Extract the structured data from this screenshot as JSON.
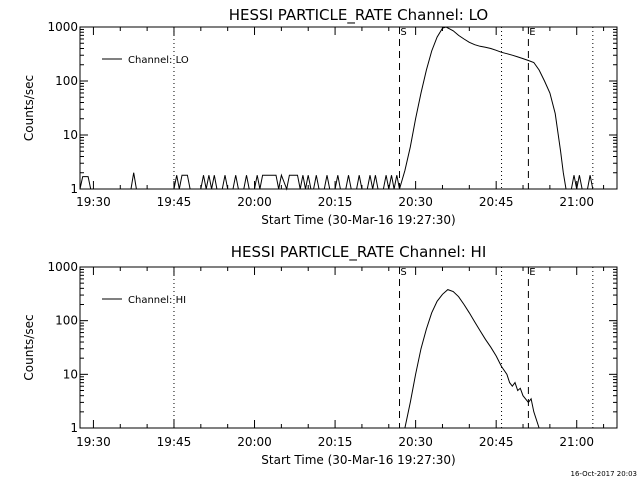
{
  "footer": {
    "timestamp": "16-Oct-2017 20:03"
  },
  "chart_data": [
    {
      "type": "line",
      "title": "HESSI PARTICLE_RATE Channel: LO",
      "xlabel": "Start Time (30-Mar-16 19:27:30)",
      "ylabel": "Counts/sec",
      "y_scale": "log",
      "ylim": [
        1,
        1000
      ],
      "xlim": [
        "19:27:30",
        "21:07:30"
      ],
      "x_ticks": [
        "19:30",
        "19:45",
        "20:00",
        "20:15",
        "20:30",
        "20:45",
        "21:00"
      ],
      "y_ticks": [
        "1",
        "10",
        "100",
        "1000"
      ],
      "markers": [
        {
          "label": "S",
          "time": "20:27:00",
          "style": "dashed"
        },
        {
          "label": "E",
          "time": "20:51:00",
          "style": "dashed"
        },
        {
          "label": "",
          "time": "19:45:00",
          "style": "dotted"
        },
        {
          "label": "",
          "time": "20:46:00",
          "style": "dotted"
        },
        {
          "label": "",
          "time": "21:03:00",
          "style": "dotted"
        }
      ],
      "legend": "top-left",
      "series": [
        {
          "name": "Channel: LO",
          "points": [
            [
              "19:27:30",
              1
            ],
            [
              "19:28:00",
              1.7
            ],
            [
              "19:29:00",
              1.7
            ],
            [
              "19:29:30",
              1
            ],
            [
              "19:37:00",
              1
            ],
            [
              "19:37:30",
              2
            ],
            [
              "19:38:00",
              1
            ],
            [
              "19:45:00",
              1
            ],
            [
              "19:45:30",
              1.8
            ],
            [
              "19:46:00",
              1
            ],
            [
              "19:46:30",
              1.8
            ],
            [
              "19:47:30",
              1.8
            ],
            [
              "19:48:00",
              1
            ],
            [
              "19:50:00",
              1
            ],
            [
              "19:50:30",
              1.8
            ],
            [
              "19:51:00",
              1
            ],
            [
              "19:51:30",
              1.8
            ],
            [
              "19:52:00",
              1
            ],
            [
              "19:52:30",
              1.8
            ],
            [
              "19:53:00",
              1
            ],
            [
              "19:54:00",
              1
            ],
            [
              "19:54:30",
              1.8
            ],
            [
              "19:55:00",
              1
            ],
            [
              "19:56:00",
              1
            ],
            [
              "19:56:30",
              1.8
            ],
            [
              "19:57:00",
              1
            ],
            [
              "19:58:00",
              1
            ],
            [
              "19:58:30",
              1.8
            ],
            [
              "19:59:00",
              1
            ],
            [
              "20:00:00",
              1
            ],
            [
              "20:00:30",
              1.8
            ],
            [
              "20:01:00",
              1
            ],
            [
              "20:01:30",
              1.8
            ],
            [
              "20:04:00",
              1.8
            ],
            [
              "20:04:30",
              1
            ],
            [
              "20:05:00",
              1.8
            ],
            [
              "20:06:00",
              1
            ],
            [
              "20:06:30",
              1.8
            ],
            [
              "20:08:00",
              1.8
            ],
            [
              "20:08:30",
              1
            ],
            [
              "20:09:00",
              1.8
            ],
            [
              "20:09:30",
              1
            ],
            [
              "20:10:00",
              1.8
            ],
            [
              "20:10:30",
              1
            ],
            [
              "20:11:00",
              1
            ],
            [
              "20:11:30",
              1.8
            ],
            [
              "20:12:00",
              1
            ],
            [
              "20:13:00",
              1
            ],
            [
              "20:13:30",
              1.8
            ],
            [
              "20:14:00",
              1
            ],
            [
              "20:15:00",
              1
            ],
            [
              "20:15:30",
              1.8
            ],
            [
              "20:16:00",
              1
            ],
            [
              "20:17:00",
              1
            ],
            [
              "20:17:30",
              1.8
            ],
            [
              "20:18:00",
              1
            ],
            [
              "20:19:00",
              1
            ],
            [
              "20:19:30",
              1.8
            ],
            [
              "20:20:00",
              1
            ],
            [
              "20:21:00",
              1
            ],
            [
              "20:21:30",
              1.8
            ],
            [
              "20:22:00",
              1
            ],
            [
              "20:22:30",
              1.8
            ],
            [
              "20:23:00",
              1
            ],
            [
              "20:24:00",
              1
            ],
            [
              "20:24:30",
              1.8
            ],
            [
              "20:25:00",
              1
            ],
            [
              "20:25:30",
              1.8
            ],
            [
              "20:26:00",
              1
            ],
            [
              "20:26:30",
              1.8
            ],
            [
              "20:27:00",
              1
            ],
            [
              "20:28:00",
              2.2
            ],
            [
              "20:29:00",
              6
            ],
            [
              "20:30:00",
              20
            ],
            [
              "20:31:00",
              60
            ],
            [
              "20:32:00",
              160
            ],
            [
              "20:33:00",
              360
            ],
            [
              "20:34:00",
              650
            ],
            [
              "20:35:00",
              950
            ],
            [
              "20:35:40",
              1000
            ],
            [
              "20:37:00",
              850
            ],
            [
              "20:38:00",
              700
            ],
            [
              "20:39:00",
              600
            ],
            [
              "20:40:00",
              520
            ],
            [
              "20:41:00",
              470
            ],
            [
              "20:42:00",
              440
            ],
            [
              "20:43:00",
              420
            ],
            [
              "20:44:00",
              400
            ],
            [
              "20:45:00",
              370
            ],
            [
              "20:46:00",
              340
            ],
            [
              "20:47:00",
              320
            ],
            [
              "20:48:00",
              300
            ],
            [
              "20:49:00",
              280
            ],
            [
              "20:50:00",
              260
            ],
            [
              "20:51:00",
              240
            ],
            [
              "20:52:00",
              220
            ],
            [
              "20:53:00",
              160
            ],
            [
              "20:54:00",
              100
            ],
            [
              "20:55:00",
              60
            ],
            [
              "20:56:00",
              25
            ],
            [
              "20:57:00",
              5
            ],
            [
              "20:57:30",
              2
            ],
            [
              "20:58:00",
              1
            ],
            [
              "20:59:00",
              1
            ],
            [
              "20:59:30",
              1.8
            ],
            [
              "21:00:00",
              1
            ],
            [
              "21:00:30",
              1.8
            ],
            [
              "21:01:00",
              1
            ],
            [
              "21:02:00",
              1
            ],
            [
              "21:02:30",
              1.8
            ],
            [
              "21:03:00",
              1
            ],
            [
              "21:07:30",
              1
            ]
          ]
        }
      ]
    },
    {
      "type": "line",
      "title": "HESSI PARTICLE_RATE Channel: HI",
      "xlabel": "Start Time (30-Mar-16 19:27:30)",
      "ylabel": "Counts/sec",
      "y_scale": "log",
      "ylim": [
        1,
        1000
      ],
      "xlim": [
        "19:27:30",
        "21:07:30"
      ],
      "x_ticks": [
        "19:30",
        "19:45",
        "20:00",
        "20:15",
        "20:30",
        "20:45",
        "21:00"
      ],
      "y_ticks": [
        "1",
        "10",
        "100",
        "1000"
      ],
      "markers": [
        {
          "label": "S",
          "time": "20:27:00",
          "style": "dashed"
        },
        {
          "label": "E",
          "time": "20:51:00",
          "style": "dashed"
        },
        {
          "label": "",
          "time": "19:45:00",
          "style": "dotted"
        },
        {
          "label": "",
          "time": "20:46:00",
          "style": "dotted"
        },
        {
          "label": "",
          "time": "21:03:00",
          "style": "dotted"
        }
      ],
      "legend": "top-left",
      "series": [
        {
          "name": "Channel: HI",
          "points": [
            [
              "20:28:00",
              1
            ],
            [
              "20:29:00",
              3
            ],
            [
              "20:30:00",
              10
            ],
            [
              "20:31:00",
              30
            ],
            [
              "20:32:00",
              70
            ],
            [
              "20:33:00",
              140
            ],
            [
              "20:34:00",
              230
            ],
            [
              "20:35:00",
              310
            ],
            [
              "20:36:00",
              380
            ],
            [
              "20:37:00",
              350
            ],
            [
              "20:38:00",
              280
            ],
            [
              "20:39:00",
              200
            ],
            [
              "20:40:00",
              140
            ],
            [
              "20:41:00",
              95
            ],
            [
              "20:42:00",
              65
            ],
            [
              "20:43:00",
              45
            ],
            [
              "20:44:00",
              32
            ],
            [
              "20:45:00",
              22
            ],
            [
              "20:46:00",
              14
            ],
            [
              "20:47:00",
              10
            ],
            [
              "20:47:30",
              7
            ],
            [
              "20:48:00",
              6
            ],
            [
              "20:48:30",
              7
            ],
            [
              "20:49:00",
              5
            ],
            [
              "20:49:30",
              5.5
            ],
            [
              "20:50:00",
              4
            ],
            [
              "20:51:00",
              3
            ],
            [
              "20:51:30",
              3.5
            ],
            [
              "20:52:00",
              2
            ],
            [
              "20:53:00",
              1
            ]
          ]
        }
      ]
    }
  ]
}
